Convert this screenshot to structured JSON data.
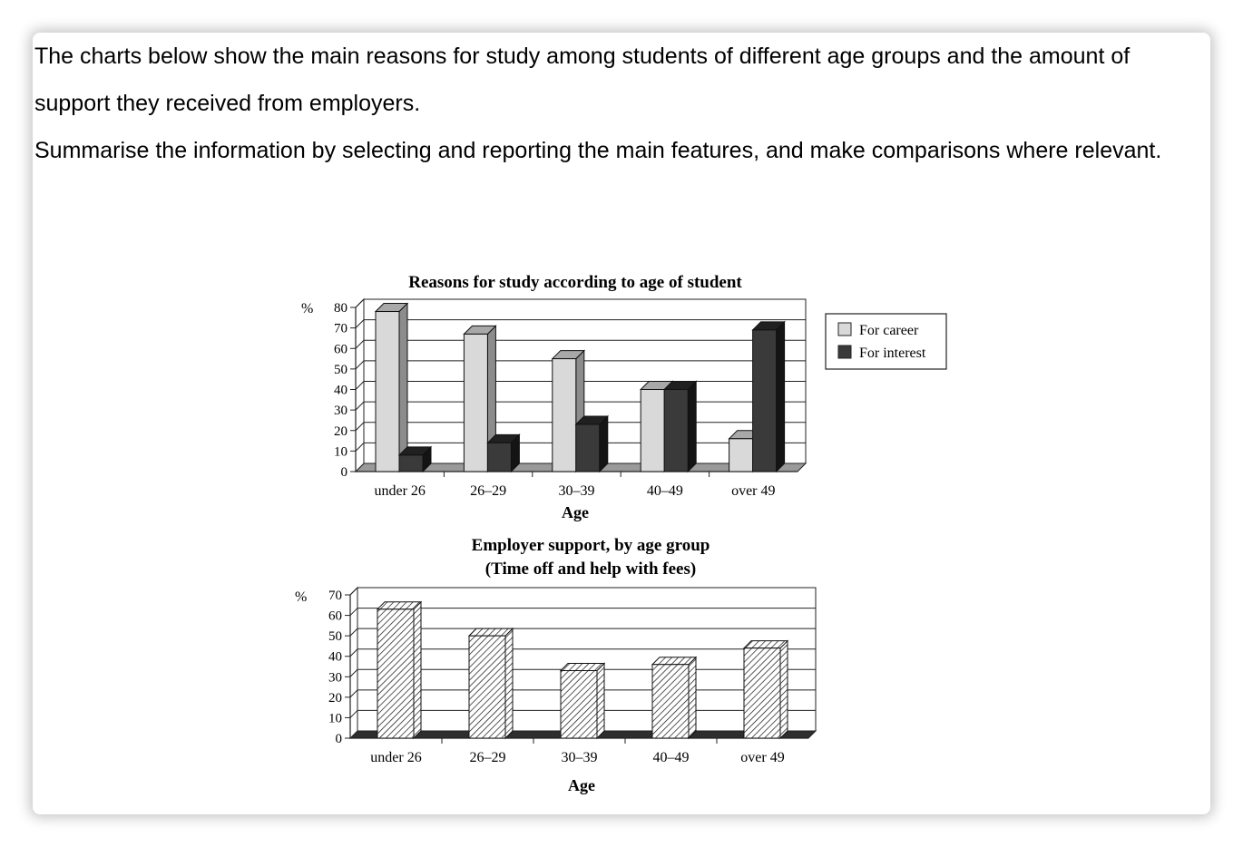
{
  "prompt": {
    "line1": "The charts below show the main reasons for study among students of different age groups and the amount of support they received from employers.",
    "line2": "Summarise the information by selecting and reporting the main features, and make comparisons where relevant."
  },
  "colors": {
    "career_face": "#d9d9d9",
    "career_side": "#8c8c8c",
    "interest_face": "#3a3a3a",
    "interest_side": "#141414",
    "support_face": "#ffffff"
  },
  "chart_data": [
    {
      "type": "bar",
      "title": "Reasons for study according to age of student",
      "xlabel": "Age",
      "ylabel": "%",
      "categories": [
        "under 26",
        "26–29",
        "30–39",
        "40–49",
        "over 49"
      ],
      "yticks": [
        "0",
        "10",
        "20",
        "30",
        "40",
        "50",
        "60",
        "70",
        "80"
      ],
      "ylim": [
        0,
        80
      ],
      "grid": true,
      "legend": "right",
      "series": [
        {
          "name": "For career",
          "values": [
            78,
            67,
            55,
            40,
            16
          ]
        },
        {
          "name": "For interest",
          "values": [
            8,
            14,
            23,
            40,
            69
          ]
        }
      ]
    },
    {
      "type": "bar",
      "title": "Employer support, by age group",
      "subtitle": "(Time off and help with fees)",
      "xlabel": "Age",
      "ylabel": "%",
      "categories": [
        "under 26",
        "26–29",
        "30–39",
        "40–49",
        "over 49"
      ],
      "yticks": [
        "0",
        "10",
        "20",
        "30",
        "40",
        "50",
        "60",
        "70"
      ],
      "ylim": [
        0,
        70
      ],
      "grid": true,
      "series": [
        {
          "values": [
            63,
            50,
            33,
            36,
            44
          ]
        }
      ]
    }
  ]
}
